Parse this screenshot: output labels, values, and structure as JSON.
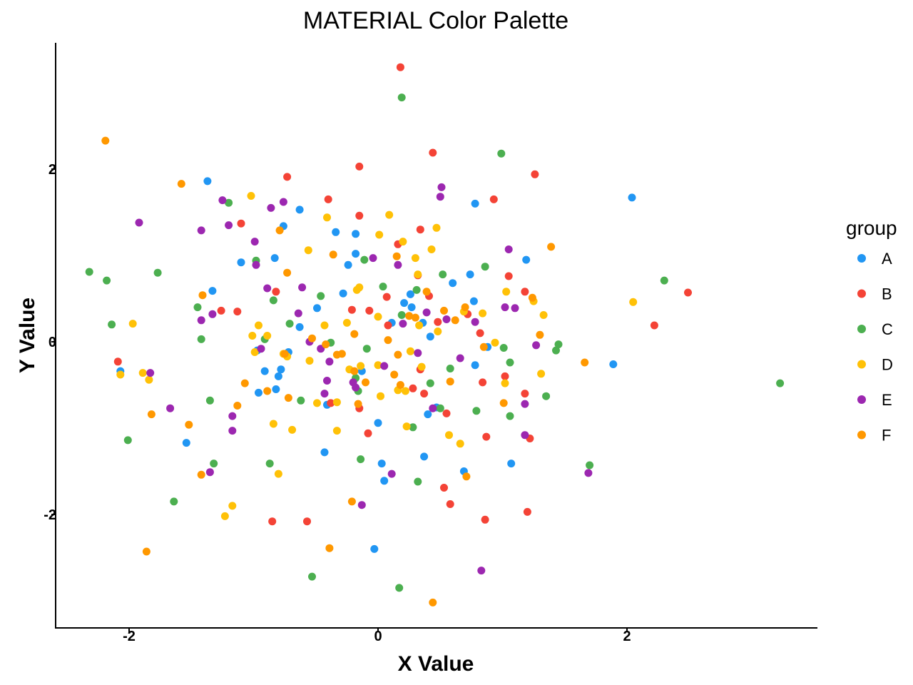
{
  "chart_data": {
    "type": "scatter",
    "title": "MATERIAL Color Palette",
    "xlabel": "X Value",
    "ylabel": "Y Value",
    "xlim": [
      -2.6,
      3.5
    ],
    "ylim": [
      -3.3,
      3.4
    ],
    "xticks": [
      -2,
      0,
      2
    ],
    "yticks": [
      -2,
      0,
      2
    ],
    "xtick_labels": [
      "-2",
      "0",
      "2"
    ],
    "ytick_labels": [
      "-2",
      "0",
      "2"
    ],
    "grid": false,
    "legend": {
      "title": "group",
      "position": "right"
    },
    "series": [
      {
        "name": "A",
        "color": "#2196F3",
        "points": [
          [
            -1.37,
            1.86
          ],
          [
            -1.33,
            0.59
          ],
          [
            -2.07,
            -0.34
          ],
          [
            -1.54,
            -1.17
          ],
          [
            -1.1,
            0.92
          ],
          [
            -0.97,
            -0.1
          ],
          [
            -0.96,
            -0.59
          ],
          [
            -0.91,
            -0.34
          ],
          [
            -0.83,
            0.97
          ],
          [
            -0.82,
            -0.55
          ],
          [
            -0.8,
            -0.4
          ],
          [
            -0.78,
            -0.32
          ],
          [
            -0.76,
            1.34
          ],
          [
            -0.72,
            -0.12
          ],
          [
            -0.63,
            1.53
          ],
          [
            -0.63,
            0.17
          ],
          [
            -0.49,
            0.39
          ],
          [
            -0.43,
            -1.28
          ],
          [
            -0.41,
            -0.73
          ],
          [
            -0.34,
            1.27
          ],
          [
            -0.28,
            0.56
          ],
          [
            -0.24,
            0.89
          ],
          [
            -0.18,
            1.02
          ],
          [
            -0.18,
            1.25
          ],
          [
            -0.13,
            -0.34
          ],
          [
            -0.03,
            -2.4
          ],
          [
            0.0,
            -0.94
          ],
          [
            0.03,
            -1.41
          ],
          [
            0.05,
            -1.61
          ],
          [
            0.11,
            0.22
          ],
          [
            0.21,
            0.45
          ],
          [
            0.26,
            0.55
          ],
          [
            0.27,
            0.4
          ],
          [
            0.36,
            0.22
          ],
          [
            0.37,
            -1.33
          ],
          [
            0.4,
            -0.84
          ],
          [
            0.42,
            0.06
          ],
          [
            0.47,
            -0.76
          ],
          [
            0.6,
            0.68
          ],
          [
            0.69,
            -1.5
          ],
          [
            0.74,
            0.78
          ],
          [
            0.77,
            0.47
          ],
          [
            0.78,
            -0.27
          ],
          [
            0.78,
            1.6
          ],
          [
            0.88,
            -0.06
          ],
          [
            1.07,
            -1.41
          ],
          [
            1.19,
            0.95
          ],
          [
            1.89,
            -0.26
          ],
          [
            2.04,
            1.67
          ]
        ]
      },
      {
        "name": "B",
        "color": "#F44336",
        "points": [
          [
            -2.09,
            -0.23
          ],
          [
            -1.26,
            0.36
          ],
          [
            -1.13,
            0.35
          ],
          [
            -1.1,
            1.37
          ],
          [
            -0.85,
            -2.08
          ],
          [
            -0.82,
            0.58
          ],
          [
            -0.73,
            1.91
          ],
          [
            -0.57,
            -2.08
          ],
          [
            -0.4,
            1.65
          ],
          [
            -0.38,
            -0.71
          ],
          [
            -0.21,
            0.37
          ],
          [
            -0.15,
            2.03
          ],
          [
            -0.15,
            1.46
          ],
          [
            -0.15,
            -0.77
          ],
          [
            -0.08,
            -1.06
          ],
          [
            -0.07,
            0.36
          ],
          [
            0.07,
            0.52
          ],
          [
            0.08,
            0.19
          ],
          [
            0.16,
            1.13
          ],
          [
            0.18,
            3.18
          ],
          [
            0.28,
            -0.54
          ],
          [
            0.32,
            0.77
          ],
          [
            0.34,
            -0.32
          ],
          [
            0.34,
            1.3
          ],
          [
            0.37,
            -0.6
          ],
          [
            0.41,
            0.53
          ],
          [
            0.44,
            2.19
          ],
          [
            0.48,
            0.23
          ],
          [
            0.53,
            -1.69
          ],
          [
            0.55,
            -0.83
          ],
          [
            0.58,
            -1.88
          ],
          [
            0.72,
            0.32
          ],
          [
            0.82,
            0.1
          ],
          [
            0.84,
            -0.47
          ],
          [
            0.86,
            -2.06
          ],
          [
            0.87,
            -1.1
          ],
          [
            0.93,
            1.65
          ],
          [
            1.02,
            -0.4
          ],
          [
            1.05,
            0.76
          ],
          [
            1.18,
            -0.6
          ],
          [
            1.18,
            0.58
          ],
          [
            1.2,
            -1.97
          ],
          [
            1.22,
            -1.12
          ],
          [
            1.26,
            1.94
          ],
          [
            2.22,
            0.19
          ],
          [
            2.49,
            0.57
          ]
        ]
      },
      {
        "name": "C",
        "color": "#4CAF50",
        "points": [
          [
            -2.32,
            0.81
          ],
          [
            -2.18,
            0.71
          ],
          [
            -2.14,
            0.2
          ],
          [
            -2.01,
            -1.14
          ],
          [
            -1.77,
            0.8
          ],
          [
            -1.64,
            -1.85
          ],
          [
            -1.45,
            0.4
          ],
          [
            -1.42,
            0.03
          ],
          [
            -1.35,
            -0.68
          ],
          [
            -1.32,
            -1.41
          ],
          [
            -1.2,
            1.61
          ],
          [
            -0.98,
            0.94
          ],
          [
            -0.91,
            0.03
          ],
          [
            -0.87,
            -1.41
          ],
          [
            -0.84,
            0.48
          ],
          [
            -0.71,
            0.21
          ],
          [
            -0.62,
            -0.68
          ],
          [
            -0.53,
            -2.72
          ],
          [
            -0.46,
            0.53
          ],
          [
            -0.38,
            -0.01
          ],
          [
            -0.18,
            -0.42
          ],
          [
            -0.16,
            -0.57
          ],
          [
            -0.14,
            -1.36
          ],
          [
            -0.11,
            0.95
          ],
          [
            -0.09,
            -0.08
          ],
          [
            0.04,
            0.64
          ],
          [
            0.17,
            -2.85
          ],
          [
            0.19,
            0.31
          ],
          [
            0.19,
            2.83
          ],
          [
            0.28,
            -0.99
          ],
          [
            0.31,
            0.6
          ],
          [
            0.32,
            -1.62
          ],
          [
            0.42,
            -0.48
          ],
          [
            0.5,
            -0.77
          ],
          [
            0.52,
            0.78
          ],
          [
            0.58,
            -0.31
          ],
          [
            0.79,
            -0.8
          ],
          [
            0.86,
            0.87
          ],
          [
            0.99,
            2.18
          ],
          [
            1.01,
            -0.07
          ],
          [
            1.06,
            -0.24
          ],
          [
            1.06,
            -0.86
          ],
          [
            1.35,
            -0.63
          ],
          [
            1.43,
            -0.1
          ],
          [
            1.45,
            -0.03
          ],
          [
            1.7,
            -1.43
          ],
          [
            2.3,
            0.71
          ],
          [
            3.23,
            -0.48
          ]
        ]
      },
      {
        "name": "D",
        "color": "#FFC107",
        "points": [
          [
            -2.07,
            -0.38
          ],
          [
            -1.97,
            0.21
          ],
          [
            -1.89,
            -0.36
          ],
          [
            -1.84,
            -0.44
          ],
          [
            -1.23,
            -2.02
          ],
          [
            -1.17,
            -1.9
          ],
          [
            -1.02,
            1.69
          ],
          [
            -1.01,
            0.07
          ],
          [
            -0.99,
            -0.12
          ],
          [
            -0.96,
            0.19
          ],
          [
            -0.89,
            0.07
          ],
          [
            -0.84,
            -0.95
          ],
          [
            -0.8,
            -1.53
          ],
          [
            -0.76,
            -0.14
          ],
          [
            -0.73,
            -0.17
          ],
          [
            -0.69,
            -1.02
          ],
          [
            -0.56,
            1.06
          ],
          [
            -0.55,
            -0.22
          ],
          [
            -0.49,
            -0.71
          ],
          [
            -0.43,
            0.19
          ],
          [
            -0.41,
            1.44
          ],
          [
            -0.33,
            -0.7
          ],
          [
            -0.33,
            -1.03
          ],
          [
            -0.25,
            0.22
          ],
          [
            -0.23,
            -0.32
          ],
          [
            -0.17,
            0.6
          ],
          [
            -0.15,
            0.63
          ],
          [
            -0.14,
            -0.28
          ],
          [
            0.0,
            0.29
          ],
          [
            0.0,
            -0.27
          ],
          [
            0.01,
            1.24
          ],
          [
            0.02,
            -0.63
          ],
          [
            0.09,
            1.47
          ],
          [
            0.16,
            -0.56
          ],
          [
            0.2,
            1.16
          ],
          [
            0.22,
            -0.57
          ],
          [
            0.23,
            -0.98
          ],
          [
            0.26,
            -0.11
          ],
          [
            0.3,
            0.97
          ],
          [
            0.32,
            0.78
          ],
          [
            0.33,
            0.19
          ],
          [
            0.35,
            -0.29
          ],
          [
            0.43,
            1.07
          ],
          [
            0.47,
            1.32
          ],
          [
            0.48,
            0.12
          ],
          [
            0.57,
            -1.08
          ],
          [
            0.66,
            -1.18
          ],
          [
            0.69,
            0.35
          ],
          [
            0.84,
            0.33
          ],
          [
            0.94,
            -0.01
          ],
          [
            1.02,
            -0.48
          ],
          [
            1.03,
            0.58
          ],
          [
            1.25,
            0.47
          ],
          [
            1.31,
            -0.37
          ],
          [
            1.33,
            0.31
          ],
          [
            2.05,
            0.46
          ]
        ]
      },
      {
        "name": "E",
        "color": "#9C27B0",
        "points": [
          [
            -1.92,
            1.38
          ],
          [
            -1.83,
            -0.36
          ],
          [
            -1.67,
            -0.77
          ],
          [
            -1.42,
            0.25
          ],
          [
            -1.42,
            1.29
          ],
          [
            -1.35,
            -1.51
          ],
          [
            -1.33,
            0.32
          ],
          [
            -1.25,
            1.64
          ],
          [
            -1.2,
            1.35
          ],
          [
            -1.17,
            -0.86
          ],
          [
            -1.17,
            -1.03
          ],
          [
            -0.99,
            1.16
          ],
          [
            -0.98,
            0.89
          ],
          [
            -0.94,
            -0.08
          ],
          [
            -0.89,
            0.62
          ],
          [
            -0.86,
            1.55
          ],
          [
            -0.76,
            1.62
          ],
          [
            -0.64,
            0.33
          ],
          [
            -0.61,
            0.63
          ],
          [
            -0.55,
            0.0
          ],
          [
            -0.46,
            -0.08
          ],
          [
            -0.43,
            -0.6
          ],
          [
            -0.41,
            -0.45
          ],
          [
            -0.39,
            -0.23
          ],
          [
            -0.2,
            -0.47
          ],
          [
            -0.18,
            -0.53
          ],
          [
            -0.13,
            -1.89
          ],
          [
            -0.04,
            0.97
          ],
          [
            0.05,
            -0.28
          ],
          [
            0.11,
            -1.53
          ],
          [
            0.16,
            0.89
          ],
          [
            0.2,
            0.21
          ],
          [
            0.32,
            -0.13
          ],
          [
            0.39,
            0.34
          ],
          [
            0.44,
            -0.77
          ],
          [
            0.5,
            1.68
          ],
          [
            0.51,
            1.79
          ],
          [
            0.55,
            0.26
          ],
          [
            0.66,
            -0.19
          ],
          [
            0.78,
            0.23
          ],
          [
            0.83,
            -2.65
          ],
          [
            1.02,
            0.4
          ],
          [
            1.05,
            1.07
          ],
          [
            1.1,
            0.39
          ],
          [
            1.18,
            -0.72
          ],
          [
            1.18,
            -1.08
          ],
          [
            1.27,
            -0.04
          ],
          [
            1.69,
            -1.52
          ]
        ]
      },
      {
        "name": "F",
        "color": "#FF9800",
        "points": [
          [
            -2.19,
            2.33
          ],
          [
            -1.82,
            -0.84
          ],
          [
            -1.86,
            -2.43
          ],
          [
            -1.58,
            1.83
          ],
          [
            -1.52,
            -0.96
          ],
          [
            -1.41,
            0.54
          ],
          [
            -1.42,
            -1.54
          ],
          [
            -1.13,
            -0.74
          ],
          [
            -1.07,
            -0.48
          ],
          [
            -0.89,
            -0.57
          ],
          [
            -0.79,
            1.29
          ],
          [
            -0.75,
            -0.14
          ],
          [
            -0.73,
            0.8
          ],
          [
            -0.72,
            -0.65
          ],
          [
            -0.53,
            0.04
          ],
          [
            -0.42,
            -0.03
          ],
          [
            -0.39,
            -2.39
          ],
          [
            -0.36,
            1.01
          ],
          [
            -0.33,
            -0.15
          ],
          [
            -0.29,
            -0.14
          ],
          [
            -0.21,
            -1.85
          ],
          [
            -0.19,
            0.09
          ],
          [
            -0.19,
            -0.34
          ],
          [
            -0.16,
            -0.72
          ],
          [
            -0.1,
            -0.47
          ],
          [
            0.08,
            0.02
          ],
          [
            0.13,
            -0.38
          ],
          [
            0.15,
            0.99
          ],
          [
            0.16,
            -0.15
          ],
          [
            0.18,
            -0.5
          ],
          [
            0.25,
            0.3
          ],
          [
            0.3,
            0.28
          ],
          [
            0.39,
            0.58
          ],
          [
            0.44,
            -3.02
          ],
          [
            0.53,
            0.36
          ],
          [
            0.58,
            -0.46
          ],
          [
            0.62,
            0.25
          ],
          [
            0.7,
            0.4
          ],
          [
            0.71,
            -1.56
          ],
          [
            0.85,
            -0.06
          ],
          [
            1.01,
            -0.71
          ],
          [
            1.24,
            0.51
          ],
          [
            1.3,
            0.08
          ],
          [
            1.39,
            1.1
          ],
          [
            1.66,
            -0.24
          ]
        ]
      }
    ]
  }
}
